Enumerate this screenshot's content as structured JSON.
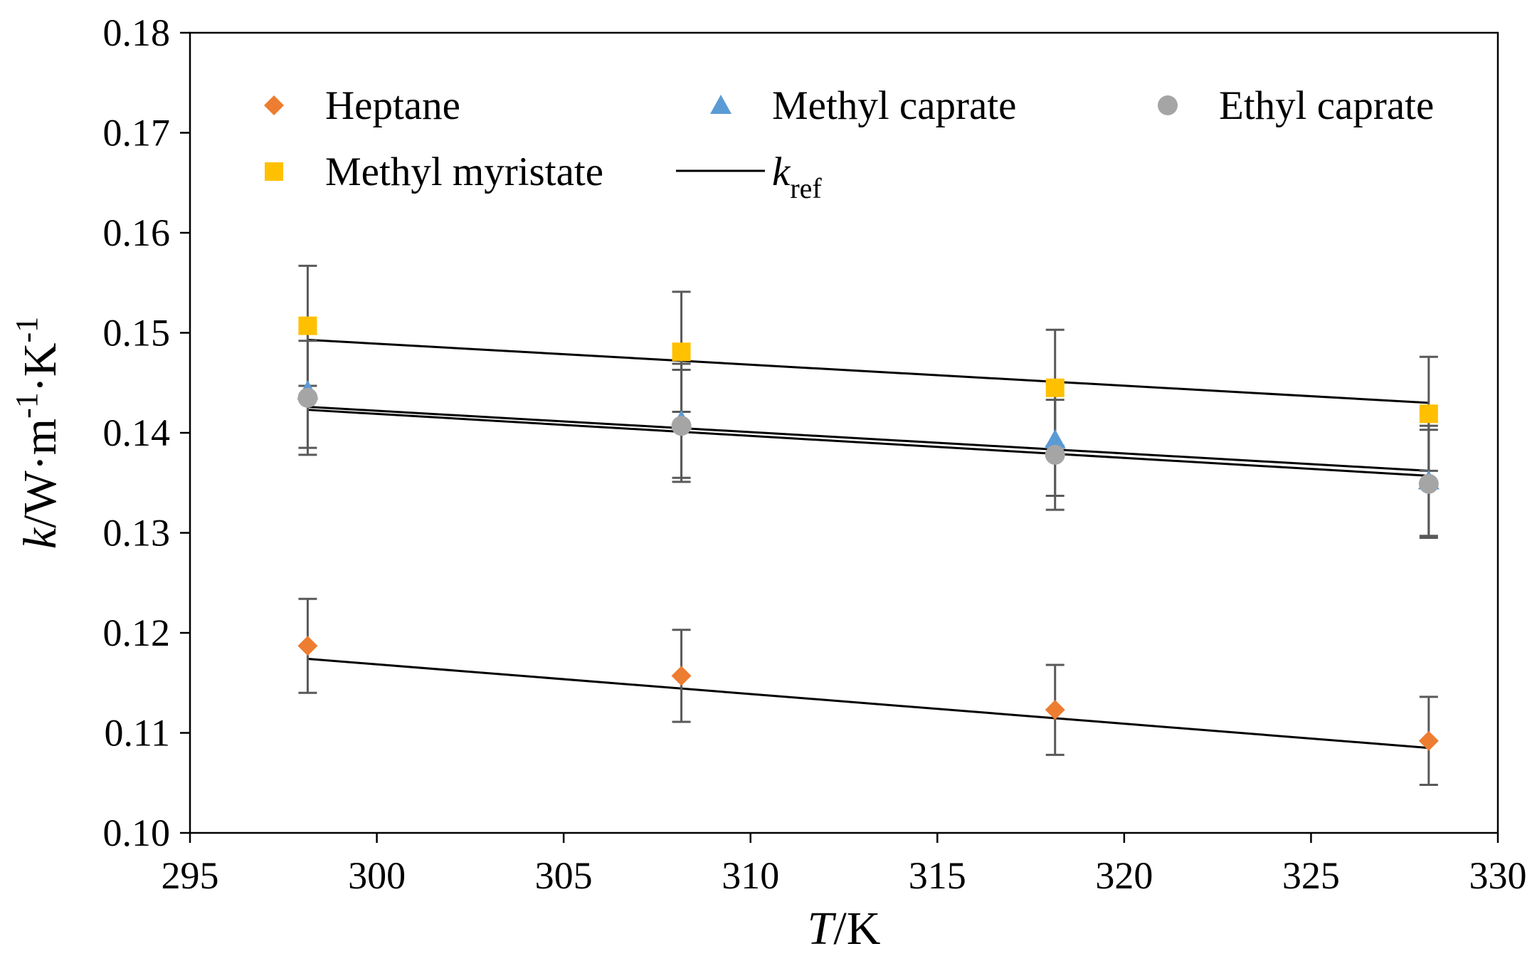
{
  "chart_data": {
    "type": "scatter",
    "title": "",
    "xlabel": {
      "var": "T",
      "unit": "/K"
    },
    "ylabel": {
      "var": "k",
      "unit": "/W·m",
      "sup1": "-1",
      "mid": "·K",
      "sup2": "-1"
    },
    "xlim": [
      295,
      330
    ],
    "ylim": [
      0.1,
      0.18
    ],
    "xticks": [
      295,
      300,
      305,
      310,
      315,
      320,
      325,
      330
    ],
    "xtick_labels": [
      "295",
      "300",
      "305",
      "310",
      "315",
      "320",
      "325",
      "330"
    ],
    "yticks": [
      0.1,
      0.11,
      0.12,
      0.13,
      0.14,
      0.15,
      0.16,
      0.17,
      0.18
    ],
    "ytick_labels": [
      "0.10",
      "0.11",
      "0.12",
      "0.13",
      "0.14",
      "0.15",
      "0.16",
      "0.17",
      "0.18"
    ],
    "grid": false,
    "x": [
      298.15,
      308.15,
      318.15,
      328.15
    ],
    "series": [
      {
        "name": "Heptane",
        "marker": "diamond",
        "color": "#ED7D31",
        "values": [
          0.1187,
          0.1157,
          0.1123,
          0.1092
        ],
        "error": [
          0.0047,
          0.0046,
          0.0045,
          0.0044
        ]
      },
      {
        "name": "Methyl caprate",
        "marker": "triangle",
        "color": "#5B9BD5",
        "values": [
          0.1442,
          0.1412,
          0.1393,
          0.1352
        ],
        "error": [
          0.0057,
          0.0057,
          0.0056,
          0.0055
        ]
      },
      {
        "name": "Ethyl caprate",
        "marker": "circle",
        "color": "#A5A5A5",
        "values": [
          0.1435,
          0.1407,
          0.1378,
          0.1349
        ],
        "error": [
          0.0057,
          0.0056,
          0.0055,
          0.0054
        ]
      },
      {
        "name": "Methyl myristate",
        "marker": "square",
        "color": "#FFC000",
        "values": [
          0.1507,
          0.1481,
          0.1445,
          0.1419
        ],
        "error": [
          0.006,
          0.006,
          0.0058,
          0.0057
        ]
      }
    ],
    "reference_lines": {
      "name": "k",
      "subscript": "ref",
      "color": "#000000",
      "lines": [
        {
          "x": [
            298.15,
            328.15
          ],
          "y": [
            0.1174,
            0.1085
          ]
        },
        {
          "x": [
            298.15,
            328.15
          ],
          "y": [
            0.1426,
            0.1362
          ]
        },
        {
          "x": [
            298.15,
            328.15
          ],
          "y": [
            0.1423,
            0.1357
          ]
        },
        {
          "x": [
            298.15,
            328.15
          ],
          "y": [
            0.1493,
            0.143
          ]
        }
      ]
    },
    "errorbar_color": "#595959",
    "legend": {
      "position": "top-inside",
      "entries": [
        "Heptane",
        "Methyl caprate",
        "Ethyl caprate",
        "Methyl myristate",
        "kref"
      ]
    }
  }
}
